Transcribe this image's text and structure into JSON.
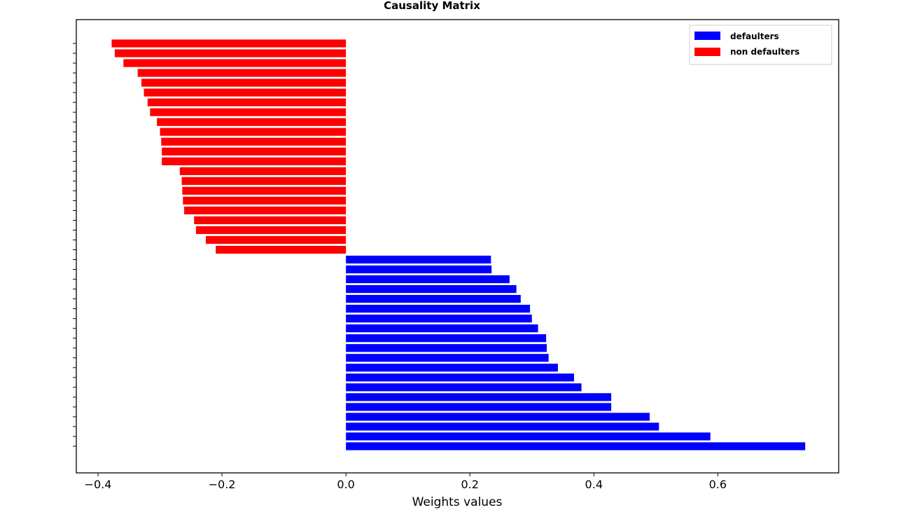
{
  "chart_data": {
    "type": "bar",
    "orientation": "horizontal",
    "title": "Causality Matrix",
    "xlabel": "Weights values",
    "ylabel": "",
    "xlim": [
      -0.435,
      0.795
    ],
    "xticks": [
      -0.4,
      -0.2,
      0.0,
      0.2,
      0.4,
      0.6
    ],
    "xtick_labels": [
      "−0.4",
      "−0.2",
      "0.0",
      "0.2",
      "0.4",
      "0.6"
    ],
    "grid": false,
    "legend_position": "top-right",
    "series": [
      {
        "name": "defaulters",
        "color": "#0000ff",
        "values": [
          0.741,
          0.588,
          0.505,
          0.49,
          0.428,
          0.428,
          0.38,
          0.368,
          0.342,
          0.327,
          0.324,
          0.323,
          0.31,
          0.3,
          0.297,
          0.282,
          0.275,
          0.264,
          0.235,
          0.234
        ]
      },
      {
        "name": "non defaulters",
        "color": "#ff0000",
        "values": [
          -0.21,
          -0.226,
          -0.242,
          -0.245,
          -0.261,
          -0.263,
          -0.264,
          -0.265,
          -0.268,
          -0.297,
          -0.297,
          -0.298,
          -0.3,
          -0.305,
          -0.316,
          -0.32,
          -0.326,
          -0.33,
          -0.336,
          -0.359,
          -0.373,
          -0.378
        ]
      }
    ]
  }
}
